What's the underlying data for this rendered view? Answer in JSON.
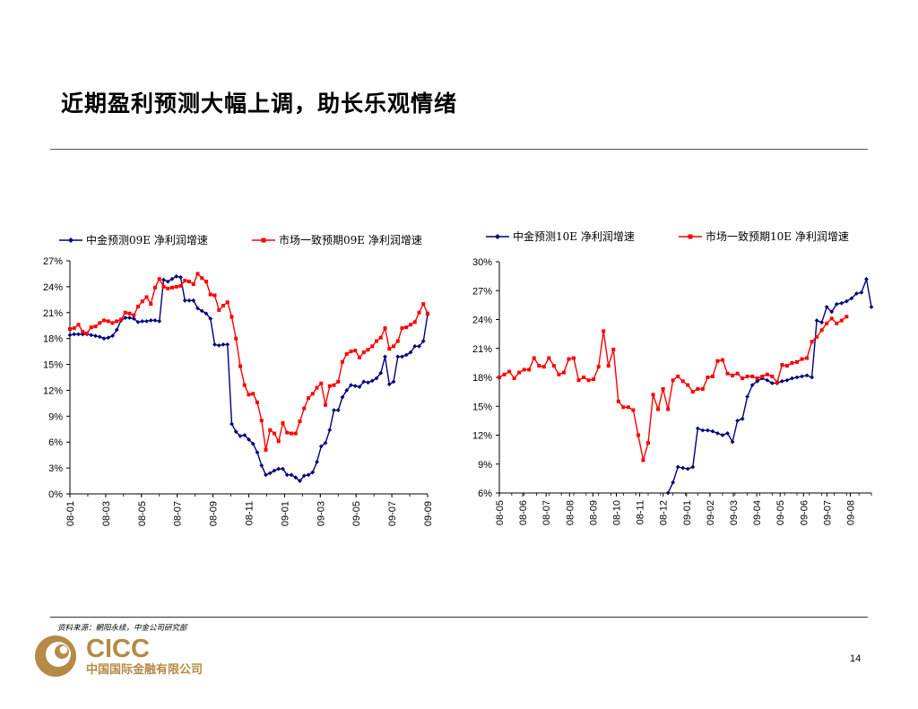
{
  "page": {
    "title": "近期盈利预测大幅上调，助长乐观情绪",
    "source": "资料来源：朝阳永续，中金公司研究部",
    "page_number": "14"
  },
  "logo": {
    "brand": "CICC",
    "name_cn": "中国国际金融有限公司",
    "colors": {
      "gold": "#b58a46",
      "gray": "#6d6e71"
    }
  },
  "colors": {
    "series_blue": "#00007a",
    "series_red": "#ff0000",
    "axis": "#000000"
  },
  "chart_data": [
    {
      "type": "line",
      "legend_position": "top",
      "grid": false,
      "x_tick_labels": [
        "08-01",
        "08-03",
        "08-05",
        "08-07",
        "08-09",
        "08-11",
        "09-01",
        "09-03",
        "09-05",
        "09-07",
        "09-09"
      ],
      "y_tick_labels": [
        "0%",
        "3%",
        "6%",
        "9%",
        "12%",
        "15%",
        "18%",
        "21%",
        "24%",
        "27%"
      ],
      "ylim": [
        0,
        27
      ],
      "series": [
        {
          "name": "中金预测09E 净利润增速",
          "marker": "diamond",
          "color": "#00007a",
          "values": [
            18.4,
            18.5,
            18.5,
            18.5,
            18.5,
            18.4,
            18.3,
            18.2,
            18.0,
            18.1,
            18.3,
            19.0,
            20.1,
            20.4,
            20.4,
            20.3,
            19.9,
            20.0,
            20.0,
            20.1,
            20.1,
            20.0,
            24.8,
            24.6,
            24.9,
            25.2,
            25.1,
            22.4,
            22.4,
            22.4,
            21.5,
            21.2,
            20.9,
            20.3,
            17.3,
            17.2,
            17.3,
            17.3,
            8.1,
            7.2,
            6.7,
            6.8,
            6.3,
            5.8,
            4.8,
            3.3,
            2.2,
            2.4,
            2.7,
            2.9,
            2.9,
            2.2,
            2.2,
            1.9,
            1.5,
            2.1,
            2.2,
            2.5,
            3.7,
            5.5,
            5.9,
            7.4,
            9.7,
            9.7,
            11.2,
            12.0,
            12.6,
            12.5,
            12.4,
            13.0,
            12.9,
            13.1,
            13.4,
            14.0,
            15.9,
            12.7,
            13.0,
            15.9,
            15.9,
            16.1,
            16.4,
            17.1,
            17.1,
            17.7,
            20.8
          ]
        },
        {
          "name": "市场一致预期09E 净利润增速",
          "marker": "square",
          "color": "#ff0000",
          "values": [
            19.1,
            19.2,
            19.6,
            18.8,
            18.6,
            19.3,
            19.4,
            19.8,
            20.1,
            20.0,
            19.8,
            20.0,
            20.2,
            21.0,
            20.9,
            20.7,
            21.7,
            22.3,
            22.8,
            22.0,
            23.9,
            24.9,
            24.0,
            23.8,
            23.9,
            24.0,
            24.1,
            24.7,
            24.6,
            24.3,
            25.5,
            25.0,
            24.6,
            23.1,
            23.0,
            21.3,
            21.8,
            22.2,
            20.5,
            18.0,
            14.8,
            12.6,
            11.5,
            11.6,
            10.6,
            8.5,
            5.1,
            7.4,
            7.0,
            6.1,
            8.2,
            7.1,
            7.0,
            7.0,
            8.4,
            9.9,
            11.1,
            11.6,
            12.3,
            12.8,
            10.3,
            12.5,
            12.6,
            13.0,
            15.3,
            16.2,
            16.5,
            16.6,
            15.8,
            16.4,
            16.7,
            17.1,
            17.7,
            18.1,
            19.2,
            16.8,
            17.1,
            17.7,
            19.2,
            19.3,
            19.6,
            19.9,
            21.0,
            22.0,
            20.9
          ]
        }
      ]
    },
    {
      "type": "line",
      "legend_position": "top",
      "grid": false,
      "x_tick_labels": [
        "08-05",
        "08-06",
        "08-07",
        "08-08",
        "08-09",
        "08-10",
        "08-11",
        "08-12",
        "09-01",
        "09-02",
        "09-03",
        "09-04",
        "09-05",
        "09-06",
        "09-07",
        "09-08"
      ],
      "y_tick_labels": [
        "6%",
        "9%",
        "12%",
        "15%",
        "18%",
        "21%",
        "24%",
        "27%",
        "30%"
      ],
      "ylim": [
        6,
        30
      ],
      "series": [
        {
          "name": "中金预测10E 净利润增速",
          "marker": "diamond",
          "color": "#00007a",
          "values": [
            null,
            null,
            null,
            null,
            null,
            null,
            null,
            null,
            null,
            null,
            null,
            null,
            null,
            null,
            null,
            null,
            null,
            null,
            null,
            null,
            null,
            null,
            null,
            null,
            null,
            null,
            null,
            null,
            null,
            null,
            null,
            null,
            null,
            null,
            6.0,
            7.1,
            8.7,
            8.6,
            8.5,
            8.7,
            12.7,
            12.5,
            12.5,
            12.4,
            12.2,
            12.0,
            12.2,
            11.3,
            13.5,
            13.7,
            16.0,
            17.2,
            17.6,
            17.9,
            17.7,
            17.4,
            17.4,
            17.6,
            17.7,
            17.9,
            18.0,
            18.1,
            18.2,
            18.0,
            23.9,
            23.7,
            25.3,
            24.8,
            25.6,
            25.7,
            25.9,
            26.2,
            26.7,
            26.8,
            28.2,
            25.3
          ]
        },
        {
          "name": "市场一致预期10E 净利润增速",
          "marker": "square",
          "color": "#ff0000",
          "values": [
            18.0,
            18.3,
            18.6,
            17.9,
            18.5,
            18.8,
            18.8,
            20.0,
            19.2,
            19.1,
            20.0,
            19.2,
            18.3,
            18.5,
            19.9,
            20.0,
            17.7,
            18.0,
            17.7,
            17.8,
            19.1,
            22.8,
            19.2,
            20.9,
            15.5,
            14.9,
            14.9,
            14.6,
            12.0,
            9.4,
            11.2,
            16.2,
            14.7,
            16.8,
            14.7,
            17.7,
            18.1,
            17.6,
            17.2,
            16.5,
            16.8,
            16.8,
            18.0,
            18.1,
            19.7,
            19.8,
            18.4,
            18.2,
            18.4,
            17.9,
            18.1,
            18.1,
            17.9,
            18.1,
            18.3,
            18.1,
            17.5,
            19.3,
            19.2,
            19.5,
            19.6,
            19.9,
            20.0,
            21.7,
            22.2,
            22.9,
            23.6,
            24.1,
            23.6,
            23.9,
            24.3
          ]
        }
      ]
    }
  ]
}
